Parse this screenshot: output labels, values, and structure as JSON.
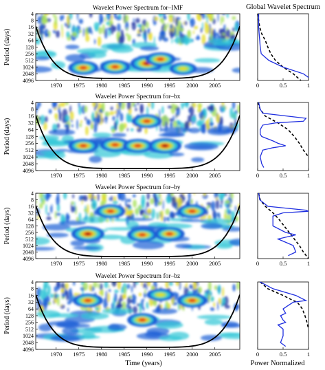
{
  "figure": {
    "global_panel_title": "Global Wavelet Spectrum",
    "x_axis_label": "Time (years)",
    "y_axis_label": "Period (days)",
    "global_x_label": "Power Normalized"
  },
  "chart_data": [
    {
      "type": "heatmap",
      "title": "Wavelet Power Spectrum for–IMF",
      "ylabel": "Period (days)",
      "x_ticks": [
        1970,
        1975,
        1980,
        1985,
        1990,
        1995,
        2000,
        2005
      ],
      "y_ticks": [
        "4",
        "8",
        "16",
        "32",
        "64",
        "128",
        "256",
        "512",
        "1024",
        "2048",
        "4096"
      ],
      "xlim": [
        1965.5,
        2010.5
      ],
      "y_scale": "log2",
      "ylim": [
        4,
        4096
      ],
      "cone_of_influence": true,
      "hotspots": [
        {
          "year": 1990,
          "period": 700,
          "level": "max"
        },
        {
          "year": 1976,
          "period": 1100,
          "level": "high"
        },
        {
          "year": 1983,
          "period": 1000,
          "level": "high"
        },
        {
          "year": 1993,
          "period": 450,
          "level": "high"
        },
        {
          "year": 1998,
          "period": 1200,
          "level": "medium"
        }
      ],
      "global": {
        "title": "Global Wavelet Spectrum",
        "xlim": [
          0,
          1
        ],
        "x_ticks": [
          "0",
          "0.5",
          "1"
        ],
        "spectrum": [
          [
            4,
            0.02
          ],
          [
            8,
            0.02
          ],
          [
            16,
            0.02
          ],
          [
            32,
            0.03
          ],
          [
            64,
            0.04
          ],
          [
            128,
            0.05
          ],
          [
            256,
            0.07
          ],
          [
            512,
            0.22
          ],
          [
            1024,
            0.5
          ],
          [
            2048,
            0.9
          ],
          [
            3000,
            1.0
          ]
        ],
        "significance": [
          [
            4,
            0.0
          ],
          [
            8,
            0.02
          ],
          [
            16,
            0.04
          ],
          [
            32,
            0.08
          ],
          [
            64,
            0.15
          ],
          [
            128,
            0.2
          ],
          [
            256,
            0.26
          ],
          [
            512,
            0.35
          ],
          [
            1024,
            0.5
          ],
          [
            2048,
            0.7
          ],
          [
            4096,
            0.85
          ]
        ]
      }
    },
    {
      "type": "heatmap",
      "title": "Wavelet Power Spectrum for–bx",
      "ylabel": "Period (days)",
      "x_ticks": [
        1970,
        1975,
        1980,
        1985,
        1990,
        1995,
        2000,
        2005
      ],
      "y_ticks": [
        "4",
        "8",
        "16",
        "32",
        "64",
        "128",
        "256",
        "512",
        "1024",
        "2048",
        "4096"
      ],
      "xlim": [
        1965.5,
        2010.5
      ],
      "y_scale": "log2",
      "ylim": [
        4,
        4096
      ],
      "cone_of_influence": true,
      "hotspots": [
        {
          "year": 1976,
          "period": 330,
          "level": "high"
        },
        {
          "year": 1983,
          "period": 300,
          "level": "high"
        },
        {
          "year": 1988,
          "period": 330,
          "level": "high"
        },
        {
          "year": 1994,
          "period": 330,
          "level": "max"
        },
        {
          "year": 1990,
          "period": 27,
          "level": "high"
        }
      ],
      "global": {
        "title": "",
        "xlim": [
          0,
          1
        ],
        "x_ticks": [
          "0",
          "0.5",
          "1"
        ],
        "spectrum": [
          [
            4,
            0.02
          ],
          [
            8,
            0.05
          ],
          [
            12,
            0.1
          ],
          [
            20,
            0.95
          ],
          [
            27,
            0.9
          ],
          [
            32,
            0.35
          ],
          [
            40,
            0.1
          ],
          [
            64,
            0.05
          ],
          [
            100,
            0.05
          ],
          [
            128,
            0.08
          ],
          [
            200,
            0.3
          ],
          [
            256,
            0.4
          ],
          [
            330,
            0.55
          ],
          [
            400,
            0.3
          ],
          [
            512,
            0.1
          ],
          [
            1024,
            0.05
          ],
          [
            2048,
            0.08
          ],
          [
            3000,
            0.12
          ]
        ],
        "significance": [
          [
            4,
            0.0
          ],
          [
            8,
            0.05
          ],
          [
            16,
            0.15
          ],
          [
            32,
            0.4
          ],
          [
            64,
            0.6
          ],
          [
            128,
            0.72
          ],
          [
            256,
            0.82
          ],
          [
            512,
            0.9
          ],
          [
            1024,
            1.0
          ]
        ]
      }
    },
    {
      "type": "heatmap",
      "title": "Wavelet Power Spectrum for–by",
      "ylabel": "Period (days)",
      "x_ticks": [
        1970,
        1975,
        1980,
        1985,
        1990,
        1995,
        2000,
        2005
      ],
      "y_ticks": [
        "4",
        "8",
        "16",
        "32",
        "64",
        "128",
        "256",
        "512",
        "1024",
        "2048",
        "4096"
      ],
      "xlim": [
        1965.5,
        2010.5
      ],
      "y_scale": "log2",
      "ylim": [
        4,
        4096
      ],
      "cone_of_influence": true,
      "hotspots": [
        {
          "year": 1977,
          "period": 300,
          "level": "max"
        },
        {
          "year": 1982,
          "period": 27,
          "level": "high"
        },
        {
          "year": 1989,
          "period": 330,
          "level": "high"
        },
        {
          "year": 1995,
          "period": 300,
          "level": "high"
        },
        {
          "year": 2000,
          "period": 27,
          "level": "high"
        }
      ],
      "global": {
        "title": "",
        "xlim": [
          0,
          1
        ],
        "x_ticks": [
          "0",
          "0.5",
          "1"
        ],
        "spectrum": [
          [
            4,
            0.02
          ],
          [
            8,
            0.04
          ],
          [
            16,
            0.2
          ],
          [
            24,
            0.95
          ],
          [
            27,
            1.0
          ],
          [
            32,
            0.5
          ],
          [
            45,
            0.3
          ],
          [
            64,
            0.3
          ],
          [
            128,
            0.3
          ],
          [
            256,
            0.55
          ],
          [
            330,
            0.75
          ],
          [
            512,
            0.4
          ],
          [
            1024,
            0.7
          ],
          [
            2048,
            0.75
          ],
          [
            3000,
            0.6
          ]
        ],
        "significance": [
          [
            4,
            0.02
          ],
          [
            8,
            0.05
          ],
          [
            16,
            0.15
          ],
          [
            32,
            0.3
          ],
          [
            64,
            0.42
          ],
          [
            128,
            0.52
          ],
          [
            256,
            0.62
          ],
          [
            512,
            0.72
          ],
          [
            1024,
            0.82
          ],
          [
            2048,
            0.9
          ],
          [
            4096,
            1.0
          ]
        ]
      }
    },
    {
      "type": "heatmap",
      "title": "Wavelet Power Spectrum for–bz",
      "ylabel": "Period (days)",
      "xlabel": "Time (years)",
      "x_ticks": [
        1970,
        1975,
        1980,
        1985,
        1990,
        1995,
        2000,
        2005
      ],
      "y_ticks": [
        "4",
        "8",
        "16",
        "32",
        "64",
        "128",
        "256",
        "512",
        "1024",
        "2048",
        "4096"
      ],
      "xlim": [
        1965.5,
        2010.5
      ],
      "y_scale": "log2",
      "ylim": [
        4,
        4096
      ],
      "cone_of_influence": true,
      "hotspots": [
        {
          "year": 1989,
          "period": 200,
          "level": "high"
        },
        {
          "year": 1977,
          "period": 27,
          "level": "high"
        },
        {
          "year": 2000,
          "period": 27,
          "level": "high"
        },
        {
          "year": 1993,
          "period": 15,
          "level": "medium"
        }
      ],
      "global": {
        "title": "",
        "xlim": [
          0,
          1
        ],
        "x_ticks": [
          "0",
          "0.5",
          "1"
        ],
        "xlabel": "Power Normalized",
        "spectrum": [
          [
            4,
            0.05
          ],
          [
            8,
            0.3
          ],
          [
            16,
            0.75
          ],
          [
            27,
            0.95
          ],
          [
            32,
            0.7
          ],
          [
            45,
            0.6
          ],
          [
            64,
            0.5
          ],
          [
            100,
            0.55
          ],
          [
            128,
            0.45
          ],
          [
            200,
            0.5
          ],
          [
            256,
            0.55
          ],
          [
            330,
            0.4
          ],
          [
            512,
            0.5
          ],
          [
            1024,
            0.5
          ],
          [
            2048,
            0.45
          ],
          [
            3000,
            0.55
          ]
        ],
        "significance": [
          [
            4,
            0.05
          ],
          [
            8,
            0.2
          ],
          [
            16,
            0.5
          ],
          [
            27,
            0.7
          ],
          [
            32,
            0.78
          ],
          [
            64,
            0.88
          ],
          [
            128,
            0.93
          ],
          [
            256,
            0.97
          ],
          [
            512,
            1.0
          ]
        ]
      }
    }
  ]
}
